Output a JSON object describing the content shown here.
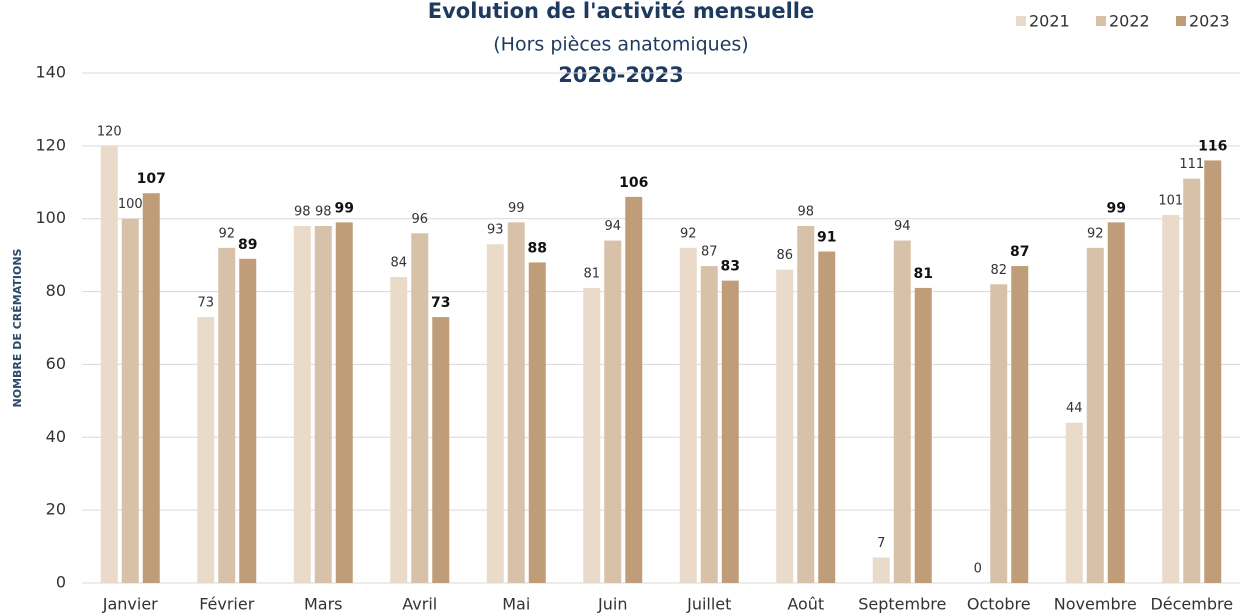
{
  "chart_data": {
    "type": "bar",
    "title": "Evolution de l'activité mensuelle",
    "subtitle": "(Hors pièces anatomiques)",
    "subtitle2": "2020-2023",
    "y_label": "NOMBRE DE CRÉMATIONS",
    "categories": [
      "Janvier",
      "Février",
      "Mars",
      "Avril",
      "Mai",
      "Juin",
      "Juillet",
      "Août",
      "Septembre",
      "Octobre",
      "Novembre",
      "Décembre"
    ],
    "series": [
      {
        "name": "2021",
        "color": "#e9dac9",
        "values": [
          120,
          73,
          98,
          84,
          93,
          81,
          92,
          86,
          7,
          0,
          44,
          101
        ]
      },
      {
        "name": "2022",
        "color": "#d7c1a9",
        "values": [
          100,
          92,
          98,
          96,
          99,
          94,
          87,
          98,
          94,
          82,
          92,
          111
        ]
      },
      {
        "name": "2023",
        "color": "#bf9d78",
        "values": [
          107,
          89,
          99,
          73,
          88,
          106,
          83,
          91,
          81,
          87,
          99,
          116
        ]
      }
    ],
    "ylim": [
      0,
      140
    ],
    "yticks": [
      0,
      20,
      40,
      60,
      80,
      100,
      120,
      140
    ],
    "grid": true,
    "legend": "top-right"
  }
}
